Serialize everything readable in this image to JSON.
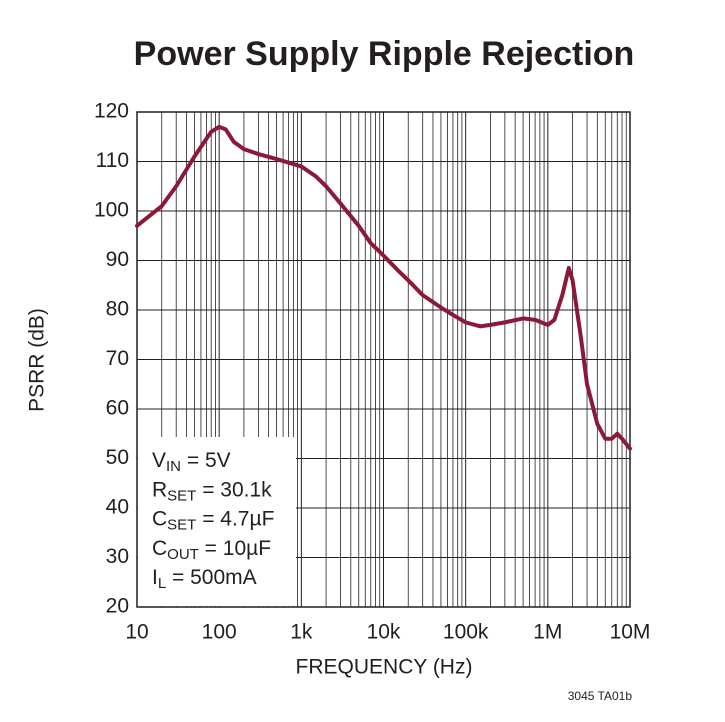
{
  "chart_data": {
    "type": "line",
    "title": "Power Supply Ripple Rejection",
    "x_label": "FREQUENCY (Hz)",
    "y_label": "PSRR (dB)",
    "x_scale": "log",
    "grid": true,
    "minor_grid": true,
    "xlim": [
      10,
      10000000
    ],
    "xticks": [
      10,
      100,
      {
        "value": 1000,
        "label": "1k"
      },
      {
        "value": 10000,
        "label": "10k"
      },
      {
        "value": 100000,
        "label": "100k"
      },
      {
        "value": 1000000,
        "label": "1M"
      },
      {
        "value": 10000000,
        "label": "10M"
      }
    ],
    "ylim": [
      20,
      120
    ],
    "yticks": [
      20,
      30,
      40,
      50,
      60,
      70,
      80,
      90,
      100,
      110,
      120
    ],
    "series": [
      {
        "color": "#8b1a3a",
        "x": [
          10,
          20,
          30,
          50,
          80,
          100,
          120,
          150,
          200,
          300,
          500,
          1000,
          1500,
          2000,
          3000,
          5000,
          7000,
          10000,
          15000,
          20000,
          30000,
          50000,
          70000,
          100000,
          150000,
          200000,
          300000,
          500000,
          700000,
          1000000,
          1200000,
          1500000,
          1800000,
          2000000,
          2500000,
          3000000,
          4000000,
          5000000,
          6000000,
          7000000,
          8000000,
          10000000
        ],
        "values": [
          97,
          101,
          105,
          111,
          116,
          117,
          116.5,
          114,
          112.5,
          111.5,
          110.5,
          109,
          107,
          105,
          101.5,
          97,
          93.5,
          91,
          88,
          86,
          83,
          80.5,
          79,
          77.5,
          76.7,
          77,
          77.5,
          78.3,
          78,
          77,
          78,
          83,
          88.5,
          86,
          75,
          65,
          57,
          54,
          54,
          55,
          54,
          52
        ]
      }
    ],
    "annotation": [
      {
        "main": "V",
        "sub": "IN",
        "rest": " = 5V"
      },
      {
        "main": "R",
        "sub": "SET",
        "rest": " = 30.1k"
      },
      {
        "main": "C",
        "sub": "SET",
        "rest": " = 4.7µF"
      },
      {
        "main": "C",
        "sub": "OUT",
        "rest": " = 10µF"
      },
      {
        "main": "I",
        "sub": "L",
        "rest": " = 500mA"
      }
    ],
    "footnote": "3045 TA01b"
  }
}
